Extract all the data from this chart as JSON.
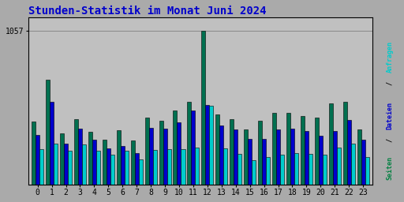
{
  "title": "Stunden-Statistik im Monat Juni 2024",
  "title_color": "#0000cc",
  "title_fontsize": 10,
  "categories": [
    0,
    1,
    2,
    3,
    4,
    5,
    6,
    7,
    8,
    9,
    10,
    11,
    12,
    13,
    14,
    15,
    16,
    17,
    18,
    19,
    20,
    21,
    22,
    23
  ],
  "green_bars": [
    430,
    720,
    350,
    450,
    360,
    310,
    370,
    300,
    460,
    440,
    510,
    570,
    1057,
    480,
    450,
    380,
    440,
    490,
    490,
    470,
    460,
    560,
    570,
    380
  ],
  "blue_bars": [
    340,
    570,
    280,
    385,
    305,
    250,
    265,
    215,
    390,
    385,
    425,
    510,
    545,
    405,
    380,
    315,
    315,
    380,
    385,
    365,
    335,
    365,
    445,
    310
  ],
  "cyan_bars": [
    240,
    280,
    230,
    275,
    230,
    205,
    230,
    170,
    235,
    240,
    240,
    255,
    540,
    250,
    210,
    165,
    190,
    205,
    215,
    210,
    205,
    255,
    280,
    190
  ],
  "bar_width": 0.28,
  "green_color": "#007050",
  "blue_color": "#0000cc",
  "cyan_color": "#00cccc",
  "bg_color": "#aaaaaa",
  "plot_bg": "#c0c0c0",
  "grid_color": "#888888",
  "ylim": [
    0,
    1150
  ],
  "ytick_value": 1057,
  "ytick_label": "1057"
}
